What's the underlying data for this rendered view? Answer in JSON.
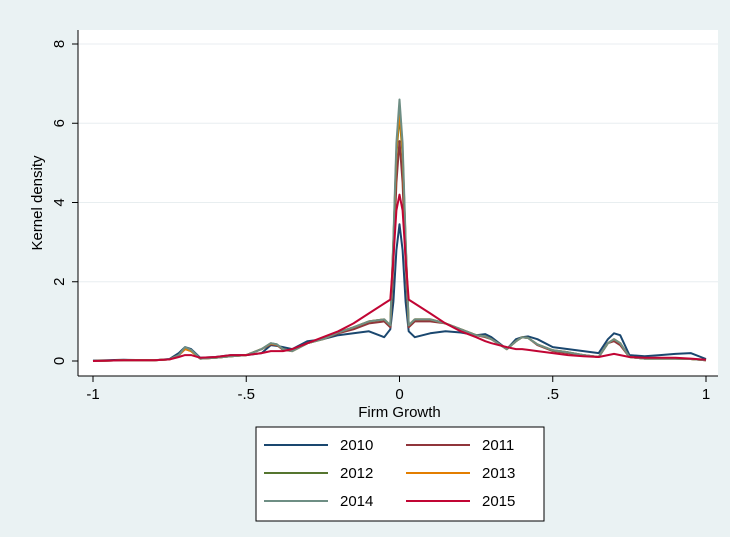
{
  "chart_data": {
    "type": "line",
    "xlabel": "Firm Growth",
    "ylabel": "Kernel density",
    "xlim": [
      -1,
      1
    ],
    "ylim": [
      0,
      8
    ],
    "x_ticks": [
      -1,
      -0.5,
      0,
      0.5,
      1
    ],
    "x_tick_labels": [
      "-1",
      "-.5",
      "0",
      ".5",
      "1"
    ],
    "y_ticks": [
      0,
      2,
      4,
      6,
      8
    ],
    "y_tick_labels": [
      "0",
      "2",
      "4",
      "6",
      "8"
    ],
    "grid": "horizontal",
    "legend_position": "bottom",
    "colors": {
      "plot_background": "#ffffff",
      "outer_background": "#eaf2f3",
      "grid": "#e8eef0"
    },
    "x": [
      -1.0,
      -0.9,
      -0.8,
      -0.75,
      -0.72,
      -0.7,
      -0.68,
      -0.65,
      -0.6,
      -0.55,
      -0.5,
      -0.45,
      -0.42,
      -0.4,
      -0.38,
      -0.35,
      -0.3,
      -0.25,
      -0.2,
      -0.15,
      -0.1,
      -0.05,
      -0.03,
      -0.02,
      -0.01,
      0.0,
      0.01,
      0.02,
      0.03,
      0.05,
      0.1,
      0.15,
      0.2,
      0.25,
      0.28,
      0.3,
      0.35,
      0.38,
      0.4,
      0.42,
      0.45,
      0.5,
      0.55,
      0.6,
      0.65,
      0.68,
      0.7,
      0.72,
      0.75,
      0.8,
      0.85,
      0.9,
      0.95,
      1.0
    ],
    "series": [
      {
        "name": "2010",
        "color": "#1a476f",
        "values": [
          0.01,
          0.03,
          0.02,
          0.05,
          0.2,
          0.35,
          0.3,
          0.08,
          0.1,
          0.15,
          0.15,
          0.2,
          0.4,
          0.38,
          0.35,
          0.3,
          0.5,
          0.55,
          0.65,
          0.7,
          0.75,
          0.6,
          0.8,
          1.5,
          2.8,
          3.45,
          2.8,
          1.5,
          0.75,
          0.6,
          0.7,
          0.75,
          0.72,
          0.65,
          0.68,
          0.6,
          0.3,
          0.55,
          0.6,
          0.62,
          0.55,
          0.35,
          0.3,
          0.25,
          0.2,
          0.55,
          0.7,
          0.65,
          0.15,
          0.12,
          0.15,
          0.18,
          0.2,
          0.05
        ]
      },
      {
        "name": "2011",
        "color": "#90353b",
        "values": [
          0.0,
          0.02,
          0.02,
          0.04,
          0.15,
          0.3,
          0.25,
          0.06,
          0.08,
          0.12,
          0.15,
          0.3,
          0.42,
          0.4,
          0.28,
          0.25,
          0.45,
          0.55,
          0.7,
          0.8,
          0.95,
          1.0,
          0.85,
          2.5,
          4.5,
          5.55,
          4.5,
          2.5,
          0.85,
          1.0,
          1.0,
          0.95,
          0.8,
          0.65,
          0.6,
          0.55,
          0.3,
          0.5,
          0.6,
          0.58,
          0.4,
          0.25,
          0.2,
          0.15,
          0.1,
          0.45,
          0.5,
          0.4,
          0.1,
          0.06,
          0.06,
          0.06,
          0.05,
          0.02
        ]
      },
      {
        "name": "2012",
        "color": "#55752f",
        "values": [
          0.0,
          0.02,
          0.02,
          0.04,
          0.15,
          0.32,
          0.25,
          0.06,
          0.08,
          0.12,
          0.15,
          0.3,
          0.45,
          0.42,
          0.3,
          0.25,
          0.45,
          0.55,
          0.72,
          0.85,
          1.0,
          1.05,
          0.9,
          3.0,
          5.2,
          6.2,
          5.2,
          3.0,
          0.9,
          1.05,
          1.05,
          0.95,
          0.8,
          0.65,
          0.62,
          0.55,
          0.3,
          0.5,
          0.6,
          0.58,
          0.42,
          0.27,
          0.22,
          0.15,
          0.1,
          0.45,
          0.55,
          0.45,
          0.1,
          0.06,
          0.06,
          0.06,
          0.05,
          0.02
        ]
      },
      {
        "name": "2013",
        "color": "#e37e00",
        "values": [
          0.0,
          0.02,
          0.02,
          0.04,
          0.15,
          0.3,
          0.25,
          0.06,
          0.08,
          0.12,
          0.15,
          0.3,
          0.44,
          0.41,
          0.3,
          0.25,
          0.45,
          0.55,
          0.72,
          0.85,
          1.0,
          1.05,
          0.9,
          3.0,
          5.3,
          6.3,
          5.3,
          3.0,
          0.9,
          1.05,
          1.05,
          0.95,
          0.8,
          0.65,
          0.62,
          0.55,
          0.3,
          0.5,
          0.6,
          0.58,
          0.42,
          0.27,
          0.22,
          0.15,
          0.1,
          0.45,
          0.55,
          0.45,
          0.1,
          0.06,
          0.06,
          0.06,
          0.05,
          0.02
        ]
      },
      {
        "name": "2014",
        "color": "#6e8e84",
        "values": [
          0.0,
          0.02,
          0.02,
          0.04,
          0.15,
          0.35,
          0.28,
          0.06,
          0.08,
          0.12,
          0.15,
          0.3,
          0.45,
          0.42,
          0.3,
          0.25,
          0.45,
          0.55,
          0.72,
          0.85,
          1.0,
          1.05,
          0.9,
          3.1,
          5.5,
          6.6,
          5.5,
          3.1,
          0.9,
          1.05,
          1.05,
          0.95,
          0.8,
          0.65,
          0.62,
          0.55,
          0.3,
          0.5,
          0.6,
          0.58,
          0.42,
          0.27,
          0.22,
          0.15,
          0.1,
          0.45,
          0.55,
          0.45,
          0.1,
          0.06,
          0.06,
          0.06,
          0.05,
          0.02
        ]
      },
      {
        "name": "2015",
        "color": "#c10534",
        "values": [
          0.0,
          0.02,
          0.02,
          0.04,
          0.1,
          0.15,
          0.15,
          0.08,
          0.1,
          0.15,
          0.15,
          0.2,
          0.25,
          0.25,
          0.25,
          0.3,
          0.45,
          0.6,
          0.75,
          0.95,
          1.2,
          1.45,
          1.55,
          2.6,
          3.8,
          4.2,
          3.8,
          2.6,
          1.55,
          1.45,
          1.2,
          0.95,
          0.75,
          0.6,
          0.5,
          0.45,
          0.35,
          0.3,
          0.3,
          0.28,
          0.25,
          0.2,
          0.15,
          0.12,
          0.1,
          0.15,
          0.18,
          0.15,
          0.1,
          0.08,
          0.08,
          0.08,
          0.06,
          0.03
        ]
      }
    ]
  }
}
